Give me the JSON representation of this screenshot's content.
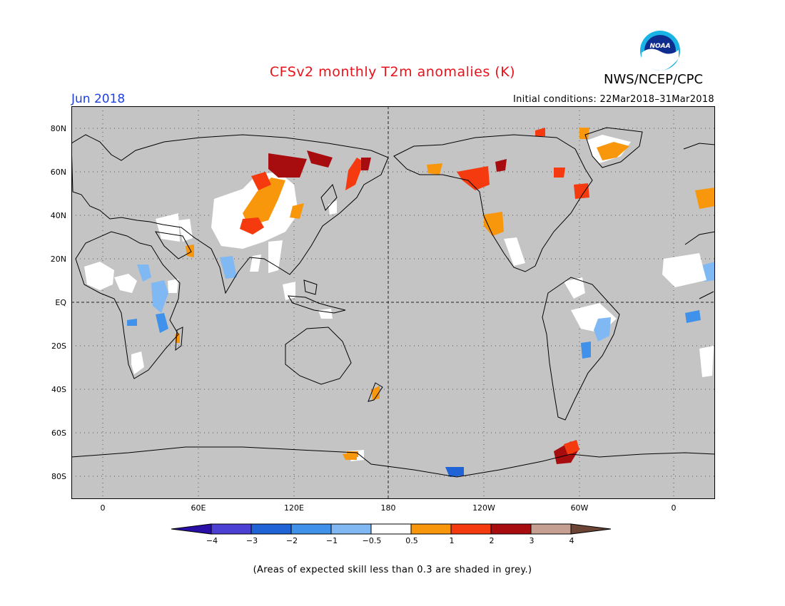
{
  "title": "CFSv2 monthly T2m anomalies (K)",
  "agency": "NWS/NCEP/CPC",
  "logo_text": "NOAA",
  "valid_month": "Jun 2018",
  "initial_conditions": "Initial conditions: 22Mar2018–31Mar2018",
  "lat_labels": [
    "80N",
    "60N",
    "40N",
    "20N",
    "EQ",
    "20S",
    "40S",
    "60S",
    "80S"
  ],
  "lon_labels": [
    "0",
    "60E",
    "120E",
    "180",
    "120W",
    "60W",
    "0"
  ],
  "colorbar": {
    "labels": [
      "−4",
      "−3",
      "−2",
      "−1",
      "−0.5",
      "0.5",
      "1",
      "2",
      "3",
      "4"
    ],
    "colors": [
      "#2a0fa6",
      "#4b3fd4",
      "#2063d6",
      "#3f91ea",
      "#7fb8f2",
      "#ffffff",
      "#f8970c",
      "#f53a10",
      "#a70c0f",
      "#c59f92",
      "#6b4435"
    ]
  },
  "footnote": "(Areas of expected skill less than 0.3 are shaded in grey.)",
  "colors": {
    "grey_mask": "#c4c4c4",
    "title": "#e8121a",
    "month": "#1f3fe0"
  }
}
